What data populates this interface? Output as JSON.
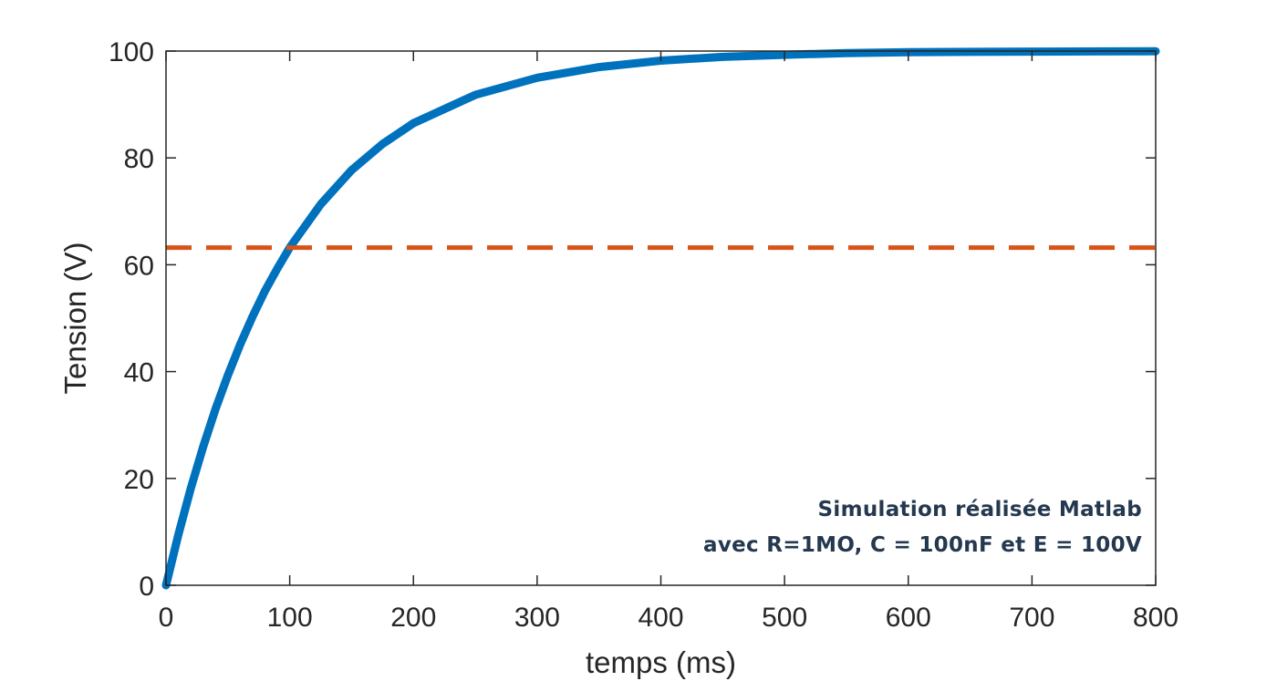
{
  "chart_data": {
    "type": "line",
    "title": "",
    "xlabel": "temps (ms)",
    "ylabel": "Tension (V)",
    "xlim": [
      0,
      800
    ],
    "ylim": [
      0,
      100
    ],
    "xticks": [
      0,
      100,
      200,
      300,
      400,
      500,
      600,
      700,
      800
    ],
    "yticks": [
      0,
      20,
      40,
      60,
      80,
      100
    ],
    "grid": false,
    "legend": "none",
    "series": [
      {
        "style": "solid",
        "color": "#0072bd",
        "x": [
          0,
          10,
          20,
          30,
          40,
          50,
          60,
          70,
          80,
          90,
          100,
          125,
          150,
          175,
          200,
          250,
          300,
          350,
          400,
          450,
          500,
          550,
          600,
          650,
          700,
          750,
          800
        ],
        "y": [
          0,
          9.5,
          18.1,
          25.9,
          33.0,
          39.3,
          45.1,
          50.3,
          55.1,
          59.3,
          63.2,
          71.3,
          77.7,
          82.6,
          86.5,
          91.8,
          95.0,
          97.0,
          98.2,
          98.9,
          99.3,
          99.6,
          99.8,
          99.85,
          99.9,
          99.94,
          99.97
        ]
      },
      {
        "style": "dashed",
        "color": "#d95319",
        "x": [
          0,
          800
        ],
        "y": [
          63.2,
          63.2
        ]
      }
    ],
    "annotations": [
      "Simulation réalisée  Matlab",
      "avec R=1MO, C = 100nF et E = 100V"
    ]
  }
}
